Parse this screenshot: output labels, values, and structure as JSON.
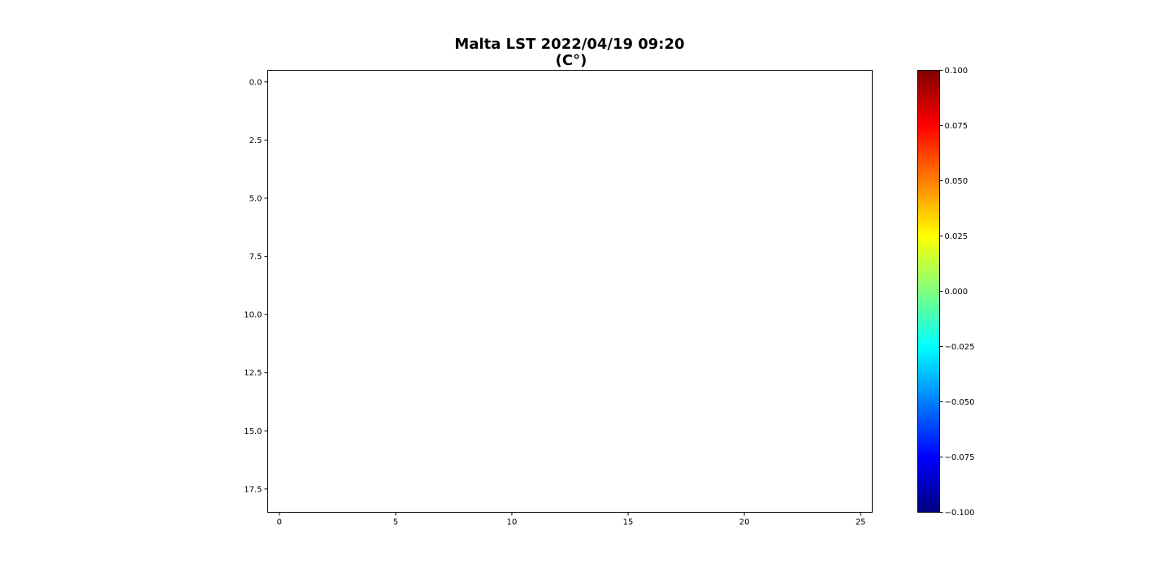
{
  "chart_data": {
    "type": "heatmap",
    "title": "Malta LST 2022/04/19 09:20",
    "subtitle": "(C°)",
    "xlabel": "",
    "ylabel": "",
    "xlim": [
      -0.5,
      25.5
    ],
    "ylim": [
      18.5,
      -0.5
    ],
    "x_ticks": [
      0,
      5,
      10,
      15,
      20,
      25
    ],
    "x_tick_labels": [
      "0",
      "5",
      "10",
      "15",
      "20",
      "25"
    ],
    "y_ticks": [
      0.0,
      2.5,
      5.0,
      7.5,
      10.0,
      12.5,
      15.0,
      17.5
    ],
    "y_tick_labels": [
      "0.0",
      "2.5",
      "5.0",
      "7.5",
      "10.0",
      "12.5",
      "15.0",
      "17.5"
    ],
    "grid": false,
    "values": [],
    "colorbar": {
      "colormap": "jet",
      "vmin": -0.1,
      "vmax": 0.1,
      "ticks": [
        -0.1,
        -0.075,
        -0.05,
        -0.025,
        0.0,
        0.025,
        0.05,
        0.075,
        0.1
      ],
      "tick_labels": [
        "−0.100",
        "−0.075",
        "−0.050",
        "−0.025",
        "0.000",
        "0.025",
        "0.050",
        "0.075",
        "0.100"
      ],
      "colors": [
        "#00007f",
        "#0000ff",
        "#007fff",
        "#00ffff",
        "#7fff7f",
        "#ffff00",
        "#ff7f00",
        "#ff0000",
        "#7f0000"
      ]
    }
  }
}
